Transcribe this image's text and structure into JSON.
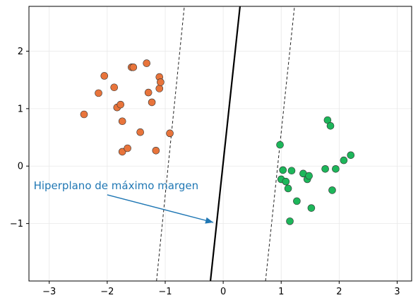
{
  "chart_data": {
    "type": "scatter",
    "xlim": [
      -3.35,
      3.25
    ],
    "ylim": [
      -2.0,
      2.78
    ],
    "xticks": [
      -3,
      -2,
      -1,
      0,
      1,
      2,
      3
    ],
    "yticks": [
      -1,
      0,
      1,
      2
    ],
    "xtick_labels": [
      "−3",
      "−2",
      "−1",
      "0",
      "1",
      "2",
      "3"
    ],
    "ytick_labels": [
      "−1",
      "0",
      "1",
      "2"
    ],
    "grid": true,
    "colors": {
      "class_a": "#e8743b",
      "class_b": "#1db65a",
      "hyperplane": "#000000",
      "margin": "#222222",
      "annotation": "#1f77b4",
      "grid": "#e8e8e8"
    },
    "series": [
      {
        "points": [
          [
            -2.4,
            0.9
          ],
          [
            -2.15,
            1.27
          ],
          [
            -2.05,
            1.57
          ],
          [
            -1.88,
            1.37
          ],
          [
            -1.83,
            1.02
          ],
          [
            -1.77,
            1.07
          ],
          [
            -1.74,
            0.78
          ],
          [
            -1.74,
            0.25
          ],
          [
            -1.65,
            0.31
          ],
          [
            -1.58,
            1.72
          ],
          [
            -1.55,
            1.72
          ],
          [
            -1.43,
            0.59
          ],
          [
            -1.32,
            1.79
          ],
          [
            -1.29,
            1.28
          ],
          [
            -1.23,
            1.11
          ],
          [
            -1.16,
            0.27
          ],
          [
            -1.1,
            1.55
          ],
          [
            -1.1,
            1.35
          ],
          [
            -1.08,
            1.46
          ],
          [
            -0.92,
            0.57
          ]
        ]
      },
      {
        "points": [
          [
            0.98,
            0.37
          ],
          [
            1.0,
            -0.23
          ],
          [
            1.03,
            -0.07
          ],
          [
            1.08,
            -0.27
          ],
          [
            1.12,
            -0.39
          ],
          [
            1.15,
            -0.96
          ],
          [
            1.18,
            -0.08
          ],
          [
            1.27,
            -0.61
          ],
          [
            1.38,
            -0.13
          ],
          [
            1.45,
            -0.23
          ],
          [
            1.48,
            -0.17
          ],
          [
            1.52,
            -0.73
          ],
          [
            1.76,
            -0.05
          ],
          [
            1.8,
            0.8
          ],
          [
            1.85,
            0.7
          ],
          [
            1.88,
            -0.42
          ],
          [
            1.94,
            -0.05
          ],
          [
            2.08,
            0.1
          ],
          [
            2.2,
            0.19
          ]
        ]
      }
    ],
    "lines": {
      "hyperplane": [
        [
          -0.22,
          -2.0
        ],
        [
          0.29,
          2.78
        ]
      ],
      "margin_left": [
        [
          -1.15,
          -2.0
        ],
        [
          -0.67,
          2.78
        ]
      ],
      "margin_right": [
        [
          0.73,
          -2.0
        ],
        [
          1.23,
          2.78
        ]
      ]
    },
    "annotation": {
      "text": "Hiperplano de máximo margen",
      "text_pos": [
        -3.27,
        -0.34
      ],
      "arrow_from": [
        -2.0,
        -0.5
      ],
      "arrow_to": [
        -0.17,
        -0.98
      ]
    }
  }
}
